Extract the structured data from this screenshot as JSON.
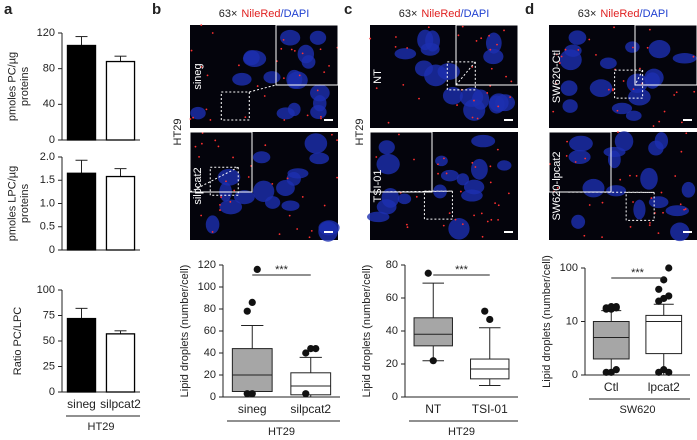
{
  "panels": {
    "a": "a",
    "b": "b",
    "c": "c",
    "d": "d"
  },
  "images": [
    {
      "magnification": "63×",
      "stain1": "NileRed",
      "stain2": "/DAPI",
      "rows": [
        "sineg",
        "silpcat2"
      ],
      "group": "HT29"
    },
    {
      "magnification": "63×",
      "stain1": "NileRed",
      "stain2": "/DAPI",
      "rows": [
        "NT",
        "TSI-01"
      ],
      "group": "HT29"
    },
    {
      "magnification": "63×",
      "stain1": "NileRed",
      "stain2": "/DAPI",
      "rows": [
        "SW620-Ctl",
        "SW620-lpcat2"
      ]
    }
  ],
  "chart_data": [
    {
      "type": "bar",
      "ylabel": "pmoles PC/µg proteins",
      "categories": [
        null,
        null
      ],
      "values": [
        106,
        88
      ],
      "errors": [
        10,
        6
      ],
      "colors": [
        "#000000",
        "#ffffff"
      ],
      "ylim": [
        0,
        120
      ],
      "yticks": [
        0,
        40,
        80,
        120
      ]
    },
    {
      "type": "bar",
      "ylabel": "pmoles LPC/µg proteins",
      "categories": [
        null,
        null
      ],
      "values": [
        1.65,
        1.58
      ],
      "errors": [
        0.28,
        0.17
      ],
      "colors": [
        "#000000",
        "#ffffff"
      ],
      "ylim": [
        0,
        2
      ],
      "yticks": [
        0,
        0.5,
        {
          "value": 1,
          "label": "1.0"
        },
        1.5,
        {
          "value": 2,
          "label": "2.0"
        }
      ]
    },
    {
      "type": "bar",
      "ylabel": "Ratio PC/LPC",
      "categories": [
        "sineg",
        "silpcat2"
      ],
      "xlabel": "HT29",
      "values": [
        72,
        57
      ],
      "errors": [
        10,
        3
      ],
      "colors": [
        "#000000",
        "#ffffff"
      ],
      "ylim": [
        0,
        100
      ],
      "yticks": [
        0,
        25,
        50,
        75,
        100
      ]
    },
    {
      "type": "box",
      "ylabel": "Lipid droplets (number/cell)",
      "categories": [
        "sineg",
        "silpcat2"
      ],
      "xlabel": "HT29",
      "annotation": "***",
      "colors": [
        "#a6a6a6",
        "#ffffff"
      ],
      "ylim": [
        0,
        120
      ],
      "yticks": [
        0,
        20,
        40,
        60,
        80,
        100,
        120
      ],
      "boxes": [
        {
          "whislo": 5,
          "q1": 5,
          "med": 20,
          "q3": 44,
          "whishi": 65,
          "fliers": [
            78,
            86,
            116,
            3,
            3
          ]
        },
        {
          "whislo": 0,
          "q1": 2,
          "med": 10,
          "q3": 22,
          "whishi": 36,
          "fliers": [
            40,
            44,
            44,
            3
          ]
        }
      ]
    },
    {
      "type": "box",
      "ylabel": "Lipid droplets (number/cell)",
      "categories": [
        "NT",
        "TSI-01"
      ],
      "xlabel": "HT29",
      "annotation": "***",
      "colors": [
        "#a6a6a6",
        "#ffffff"
      ],
      "ylim": [
        0,
        80
      ],
      "yticks": [
        0,
        20,
        40,
        60,
        80
      ],
      "boxes": [
        {
          "whislo": 22,
          "q1": 31,
          "med": 38,
          "q3": 48,
          "whishi": 69,
          "fliers": [
            75,
            22
          ]
        },
        {
          "whislo": 7,
          "q1": 11,
          "med": 17,
          "q3": 23,
          "whishi": 42,
          "fliers": [
            52,
            47
          ]
        }
      ]
    },
    {
      "type": "box",
      "ylabel": "Lipid droplets (number/cell)",
      "categories": [
        "Ctl",
        "lpcat2"
      ],
      "xlabel": "SW620",
      "annotation": "***",
      "colors": [
        "#a6a6a6",
        "#ffffff"
      ],
      "yscale": "symlog",
      "linthresh": 10,
      "ylim": [
        0,
        100
      ],
      "yticks": [
        0,
        10,
        100
      ],
      "boxes": [
        {
          "whislo": 0,
          "q1": 3,
          "med": 7,
          "q3": 10,
          "whishi": 16,
          "fliers": [
            17,
            17,
            18,
            18,
            19,
            19,
            0.5,
            0.5,
            1
          ]
        },
        {
          "whislo": 0,
          "q1": 4,
          "med": 10,
          "q3": 13,
          "whishi": 21,
          "fliers": [
            24,
            27,
            30,
            40,
            60,
            100,
            0.5,
            1,
            0.5
          ]
        }
      ]
    }
  ]
}
